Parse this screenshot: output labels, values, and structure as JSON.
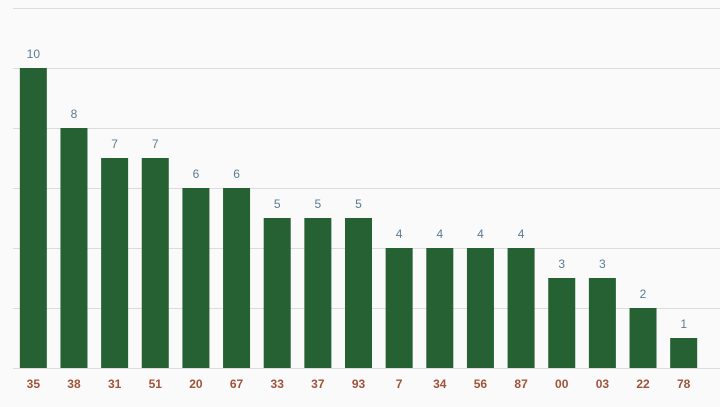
{
  "chart_data": {
    "type": "bar",
    "categories": [
      "35",
      "38",
      "31",
      "51",
      "20",
      "67",
      "33",
      "37",
      "93",
      "7",
      "34",
      "56",
      "87",
      "00",
      "03",
      "22",
      "78"
    ],
    "values": [
      10,
      8,
      7,
      7,
      6,
      6,
      5,
      5,
      5,
      4,
      4,
      4,
      4,
      3,
      3,
      2,
      1
    ],
    "color": "#256132",
    "ylim": [
      0,
      12
    ],
    "yticks": [
      0,
      2,
      4,
      6,
      8,
      10,
      12
    ],
    "grid": true
  }
}
